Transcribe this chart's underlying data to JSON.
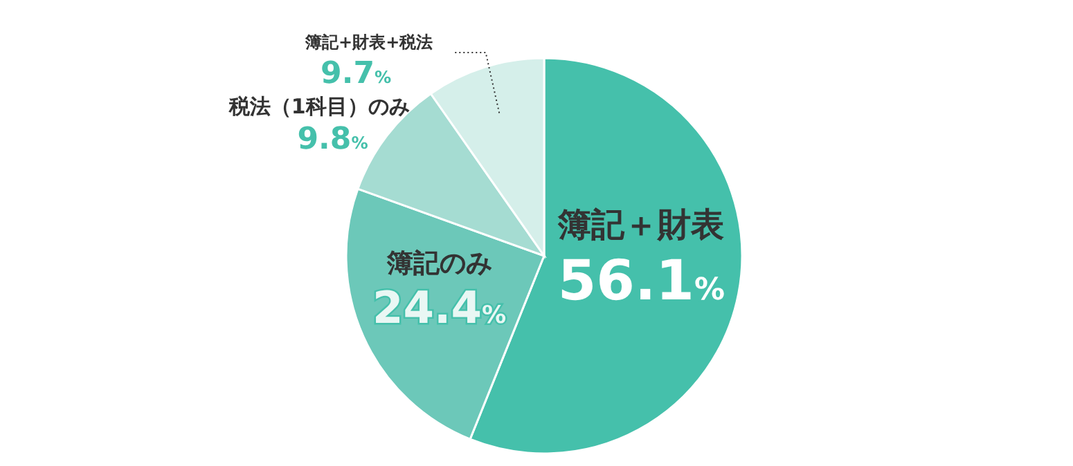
{
  "chart_data": {
    "type": "pie",
    "categories": [
      "簿記＋財表",
      "簿記のみ",
      "税法（1科目）のみ",
      "簿記+財表+税法"
    ],
    "values": [
      56.1,
      24.4,
      9.8,
      9.7
    ],
    "colors": [
      "#45c0ab",
      "#6cc8b9",
      "#a5dcd2",
      "#d5efea"
    ],
    "value_labels": [
      "56.1%",
      "24.4%",
      "9.8%",
      "9.7%"
    ],
    "legend": false
  }
}
